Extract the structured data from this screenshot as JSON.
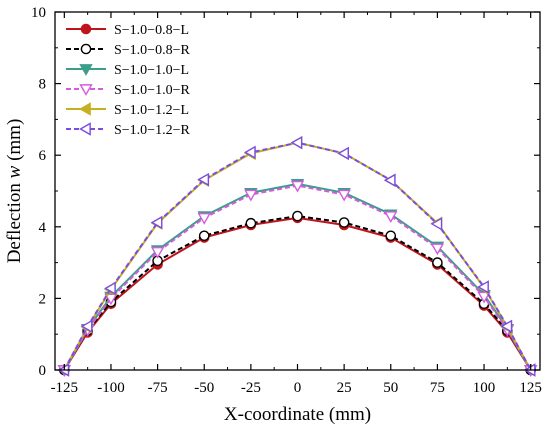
{
  "chart_data": {
    "type": "line",
    "xlabel": "X-coordinate (mm)",
    "ylabel_prefix": "Deflection ",
    "ylabel_var": "w",
    "ylabel_suffix": " (mm)",
    "xlim": [
      -130,
      130
    ],
    "ylim": [
      0,
      10
    ],
    "xticks": [
      -125,
      -100,
      -75,
      -50,
      -25,
      0,
      25,
      50,
      75,
      100,
      125
    ],
    "yticks": [
      0,
      2,
      4,
      6,
      8,
      10
    ],
    "grid": false,
    "legend_position": "top-left",
    "x": [
      -125,
      -112.5,
      -100,
      -75,
      -50,
      -25,
      0,
      25,
      50,
      75,
      100,
      112.5,
      125
    ],
    "series": [
      {
        "name": "S−1.0−0.8−L",
        "color": "#c0141c",
        "line": "solid",
        "marker": "circle",
        "marker_fill": "filled",
        "values": [
          0,
          1.05,
          1.85,
          2.95,
          3.7,
          4.05,
          4.25,
          4.05,
          3.7,
          2.95,
          1.8,
          1.05,
          0
        ]
      },
      {
        "name": "S−1.0−0.8−R",
        "color": "#000000",
        "line": "dashed",
        "marker": "circle",
        "marker_fill": "open",
        "values": [
          0,
          1.1,
          1.9,
          3.05,
          3.75,
          4.1,
          4.3,
          4.12,
          3.75,
          3.0,
          1.85,
          1.1,
          0
        ]
      },
      {
        "name": "S−1.0−1.0−L",
        "color": "#3a9e8a",
        "line": "solid",
        "marker": "triangle-down",
        "marker_fill": "filled",
        "values": [
          0,
          1.15,
          2.05,
          3.35,
          4.3,
          4.95,
          5.2,
          4.95,
          4.35,
          3.45,
          2.1,
          1.15,
          0
        ]
      },
      {
        "name": "S−1.0−1.0−R",
        "color": "#d45cdc",
        "line": "dashed",
        "marker": "triangle-down",
        "marker_fill": "open",
        "values": [
          0,
          1.12,
          2.0,
          3.3,
          4.25,
          4.9,
          5.15,
          4.9,
          4.3,
          3.4,
          2.05,
          1.12,
          0
        ]
      },
      {
        "name": "S−1.0−1.2−L",
        "color": "#c4b020",
        "line": "solid",
        "marker": "triangle-left",
        "marker_fill": "filled",
        "values": [
          0,
          1.2,
          2.25,
          4.1,
          5.3,
          6.05,
          6.35,
          6.05,
          5.3,
          4.1,
          2.3,
          1.2,
          0
        ]
      },
      {
        "name": "S−1.0−1.2−R",
        "color": "#7a4ce0",
        "line": "dashed",
        "marker": "triangle-left",
        "marker_fill": "open",
        "values": [
          0,
          1.22,
          2.28,
          4.12,
          5.32,
          6.08,
          6.35,
          6.05,
          5.3,
          4.08,
          2.32,
          1.22,
          0
        ]
      }
    ]
  }
}
